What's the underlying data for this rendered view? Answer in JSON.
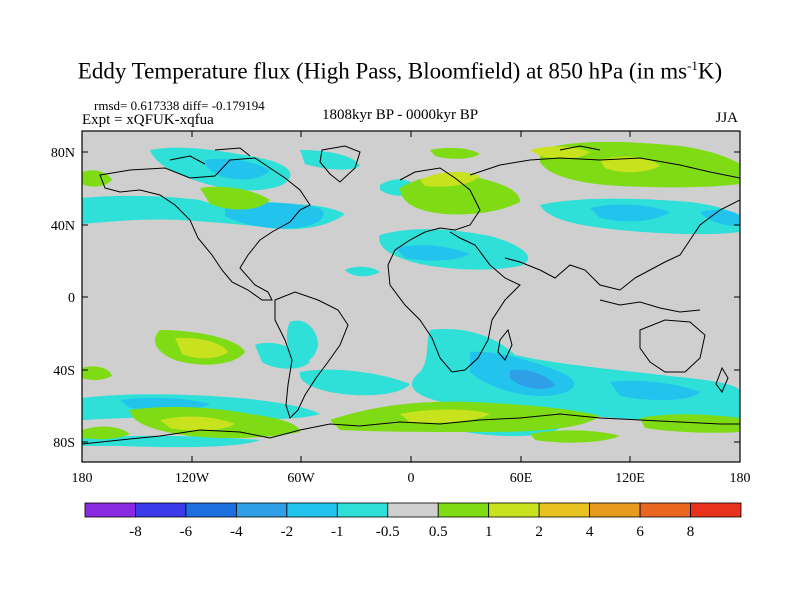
{
  "title": {
    "text": "Eddy Temperature flux (High Pass, Bloomfield) at 850 hPa (in ms",
    "sup": "-1",
    "end": "K)"
  },
  "stats": "rmsd= 0.617338 diff= -0.179194",
  "experiment": "Expt = xQFUK-xqfua",
  "period": "1808kyr BP - 0000kyr BP",
  "season": "JJA",
  "axes": {
    "y_ticks": [
      "80N",
      "40N",
      "0",
      "40S",
      "80S"
    ],
    "x_ticks": [
      "180",
      "120W",
      "60W",
      "0",
      "60E",
      "120E",
      "180"
    ]
  },
  "colorbar": {
    "labels": [
      "-8",
      "-6",
      "-4",
      "-2",
      "-1",
      "-0.5",
      "0.5",
      "1",
      "2",
      "4",
      "6",
      "8"
    ],
    "colors": [
      "#8a2be2",
      "#3a3ae8",
      "#1e6fe0",
      "#2f9fe8",
      "#22c4ee",
      "#2ee0d8",
      "#cfcfcf",
      "#7fdc14",
      "#c8e21e",
      "#e8c21e",
      "#e89a1e",
      "#e8661e",
      "#e8321e"
    ]
  },
  "colors": {
    "land_neutral": "#cfcfcf",
    "coastline": "#000000"
  }
}
